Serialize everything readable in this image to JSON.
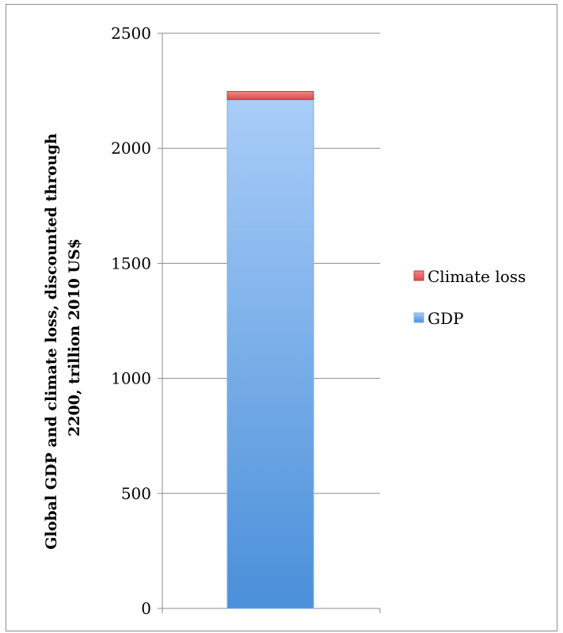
{
  "chart_data": {
    "type": "bar",
    "stacked": true,
    "categories": [
      ""
    ],
    "series": [
      {
        "name": "GDP",
        "values": [
          2212
        ],
        "color": "#5a9be0"
      },
      {
        "name": "Climate loss",
        "values": [
          35
        ],
        "color": "#e06060"
      }
    ],
    "title": "",
    "xlabel": "",
    "ylabel": "Global GDP and climate loss, discounted through 2200, trillion 2010 US$",
    "ylabel_lines": [
      "Global GDP and climate loss, discounted through",
      "2200, trillion 2010 US$"
    ],
    "ylim": [
      0,
      2500
    ],
    "yticks": [
      0,
      500,
      1000,
      1500,
      2000,
      2500
    ],
    "grid": true,
    "legend_position": "right",
    "legend_order": [
      "Climate loss",
      "GDP"
    ]
  }
}
